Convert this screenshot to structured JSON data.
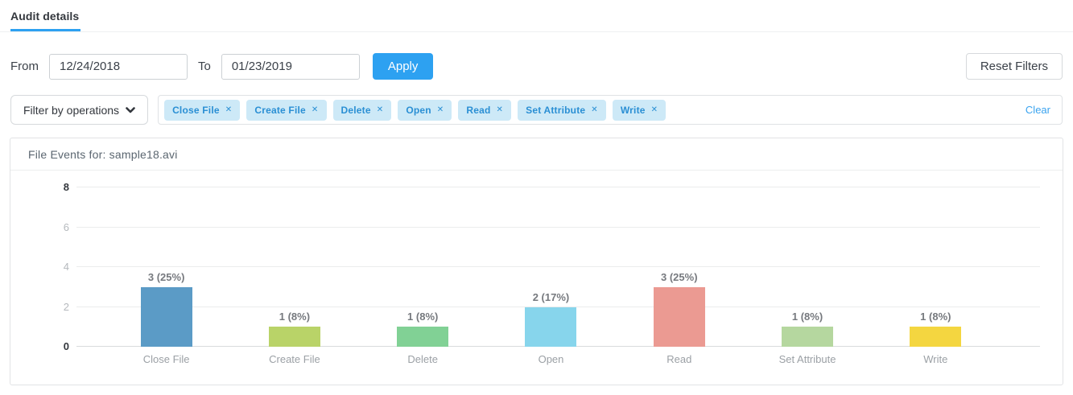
{
  "tabs": [
    {
      "label": "Audit details",
      "active": true
    }
  ],
  "date_filter": {
    "from_label": "From",
    "from_value": "12/24/2018",
    "to_label": "To",
    "to_value": "01/23/2019",
    "apply_label": "Apply",
    "reset_label": "Reset Filters"
  },
  "operations_filter": {
    "dropdown_label": "Filter by operations",
    "chips": [
      "Close File",
      "Create File",
      "Delete",
      "Open",
      "Read",
      "Set Attribute",
      "Write"
    ],
    "remove_icon": "✕",
    "clear_label": "Clear"
  },
  "colors": {
    "accent_blue": "#2da1f1",
    "chip_background": "#cde9f7",
    "chip_text": "#2a8fd4",
    "grid_line": "#ebecec",
    "axis_strong_text": "#33373d",
    "axis_light_text": "#b5b9bd"
  },
  "chart_data": {
    "type": "bar",
    "title": "File Events for: sample18.avi",
    "categories": [
      "Close File",
      "Create File",
      "Delete",
      "Open",
      "Read",
      "Set Attribute",
      "Write"
    ],
    "values": [
      3,
      1,
      1,
      2,
      3,
      1,
      1
    ],
    "value_labels": [
      "3 (25%)",
      "1 (8%)",
      "1 (8%)",
      "2 (17%)",
      "3 (25%)",
      "1 (8%)",
      "1 (8%)"
    ],
    "bar_colors": [
      "#5b9bc6",
      "#b9d368",
      "#81d195",
      "#87d5ec",
      "#eb9a92",
      "#b5d79f",
      "#f4d640"
    ],
    "yticks": [
      0,
      2,
      4,
      6,
      8
    ],
    "ylim": [
      0,
      8
    ],
    "xlabel": "",
    "ylabel": "",
    "grid": true,
    "legend_position": "none"
  }
}
